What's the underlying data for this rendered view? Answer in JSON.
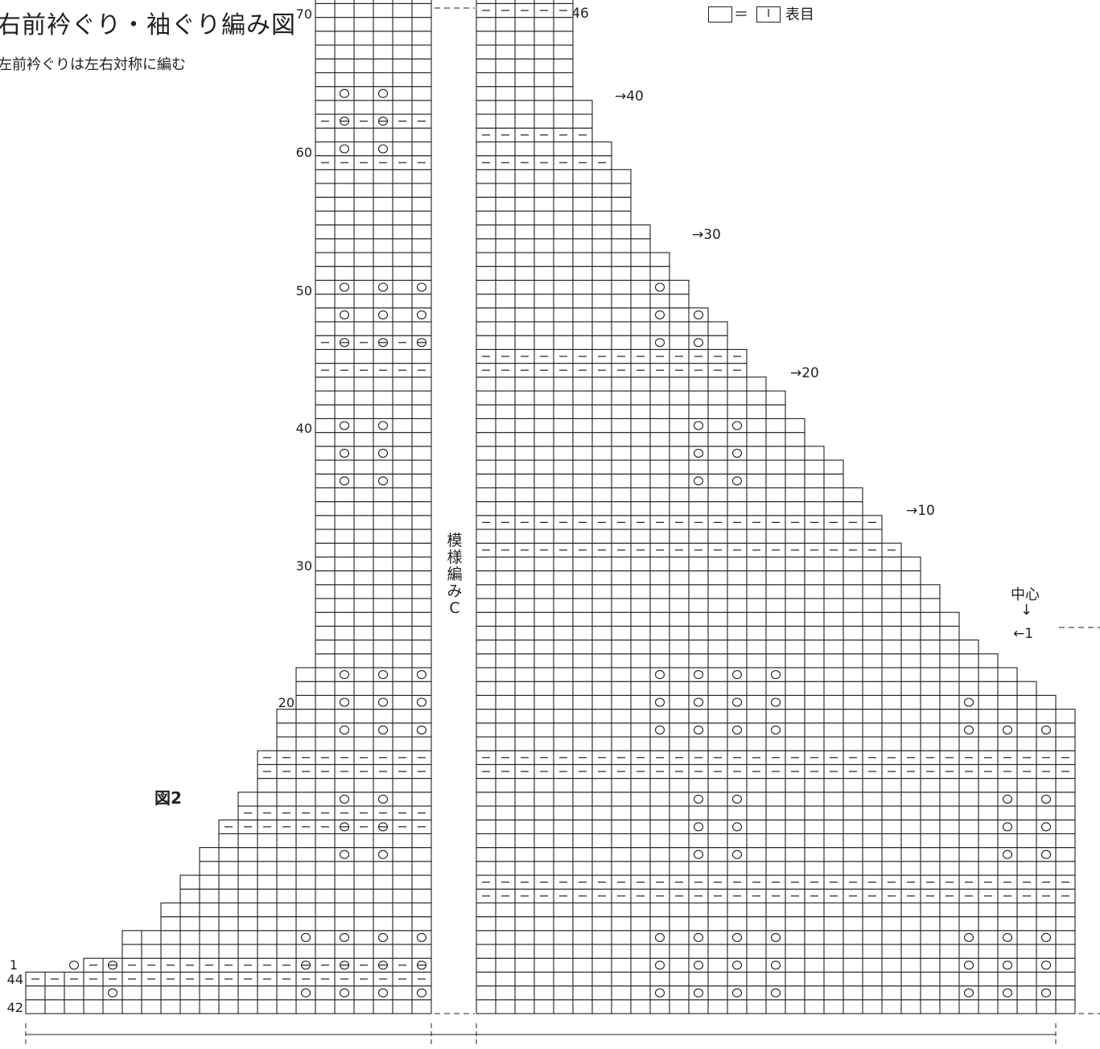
{
  "title": "右前衿ぐり・袖ぐり編み図",
  "note": "左前衿ぐりは左右対称に編む",
  "figure_label": "図2",
  "pattern_label": "模様編みC",
  "center_label": "中心",
  "center_arrow": "↓",
  "legend": {
    "equals": "＝",
    "stitch_symbol": "I",
    "meaning": "表目"
  },
  "row_numbers": [
    {
      "text": "70"
    },
    {
      "text": "60"
    },
    {
      "text": "50"
    },
    {
      "text": "40"
    },
    {
      "text": "30"
    },
    {
      "text": "20"
    },
    {
      "text": "10"
    },
    {
      "text": "1"
    },
    {
      "text": "44"
    },
    {
      "text": "42"
    }
  ],
  "right_arrows": [
    {
      "text": "→46"
    },
    {
      "text": "→40"
    },
    {
      "text": "→30"
    },
    {
      "text": "→20"
    },
    {
      "text": "→10"
    },
    {
      "text": "←1"
    }
  ],
  "symbols": {
    "purl": "－",
    "yarn_over": "○",
    "k2tog": "⋏",
    "ssk": "⋋",
    "k3tog": "⋔"
  }
}
